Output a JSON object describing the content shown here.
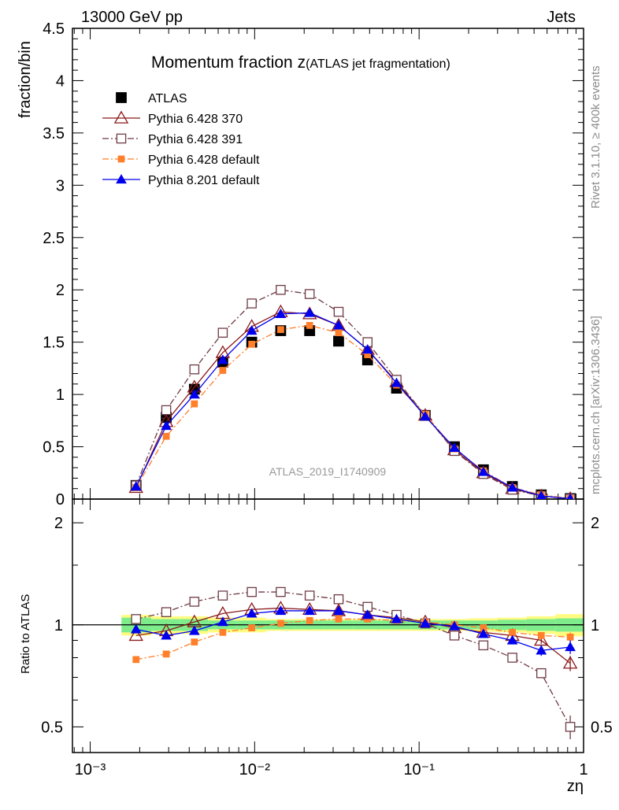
{
  "header": {
    "left_label": "13000 GeV pp",
    "right_label": "Jets",
    "side_top": "Rivet 3.1.10, ≥ 400k events",
    "side_bottom": "mcplots.cern.ch [arXiv:1306.3436]",
    "watermark": "ATLAS_2019_I1740909"
  },
  "chart_data": [
    {
      "type": "line",
      "title": "Momentum fraction z",
      "subtitle": "(ATLAS jet fragmentation)",
      "xlabel": "zη",
      "ylabel": "fraction/bin",
      "x_scale": "log",
      "xlim": [
        0.00078,
        1.0
      ],
      "ylim": [
        0,
        4.5
      ],
      "y_ticks": [
        0,
        0.5,
        1,
        1.5,
        2,
        2.5,
        3,
        3.5,
        4,
        4.5
      ],
      "y_tick_labels": [
        "0",
        "0.5",
        "1",
        "1.5",
        "2",
        "2.5",
        "3",
        "3.5",
        "4",
        "4.5"
      ],
      "x_tick_labels": [
        "10⁻³",
        "10⁻²",
        "10⁻¹",
        "1"
      ],
      "legend_position": "top-left",
      "x": [
        0.0019,
        0.0029,
        0.0043,
        0.0064,
        0.0096,
        0.0144,
        0.0216,
        0.0324,
        0.0486,
        0.0729,
        0.109,
        0.164,
        0.246,
        0.369,
        0.553,
        0.83
      ],
      "series": [
        {
          "name": "ATLAS",
          "marker": "square-filled",
          "color": "#000000",
          "values": [
            0.13,
            0.78,
            1.05,
            1.31,
            1.5,
            1.61,
            1.61,
            1.51,
            1.33,
            1.06,
            0.8,
            0.5,
            0.28,
            0.12,
            0.04,
            0.005
          ]
        },
        {
          "name": "Pythia 6.428 370",
          "marker": "triangle-open",
          "color": "#8b1a1a",
          "dash": "solid",
          "values": [
            0.11,
            0.74,
            1.07,
            1.4,
            1.65,
            1.79,
            1.77,
            1.66,
            1.43,
            1.12,
            0.8,
            0.47,
            0.25,
            0.1,
            0.03,
            0.004
          ]
        },
        {
          "name": "Pythia 6.428 391",
          "marker": "square-open",
          "color": "#6e3b44",
          "dash": "dashdot",
          "values": [
            0.13,
            0.85,
            1.24,
            1.59,
            1.87,
            2.0,
            1.96,
            1.79,
            1.5,
            1.14,
            0.8,
            0.46,
            0.24,
            0.09,
            0.03,
            0.003
          ]
        },
        {
          "name": "Pythia 6.428 default",
          "marker": "square-small-filled",
          "color": "#ff7f2a",
          "dash": "dashdot",
          "values": [
            0.11,
            0.6,
            0.91,
            1.23,
            1.48,
            1.62,
            1.66,
            1.59,
            1.38,
            1.09,
            0.81,
            0.48,
            0.27,
            0.11,
            0.04,
            0.005
          ]
        },
        {
          "name": "Pythia 8.201 default",
          "marker": "triangle-filled",
          "color": "#0000ee",
          "dash": "solid",
          "values": [
            0.12,
            0.7,
            1.0,
            1.33,
            1.61,
            1.77,
            1.78,
            1.66,
            1.43,
            1.11,
            0.79,
            0.49,
            0.26,
            0.11,
            0.03,
            0.004
          ]
        }
      ]
    },
    {
      "type": "line",
      "ylabel": "Ratio to ATLAS",
      "xlabel": "zη",
      "x_scale": "log",
      "y_scale": "log",
      "xlim": [
        0.00078,
        1.0
      ],
      "ylim": [
        0.42,
        2.35
      ],
      "y_tick_labels": [
        "0.5",
        "1",
        "2"
      ],
      "y_ticks": [
        0.5,
        1,
        2
      ],
      "reference_line": 1,
      "band_colors": {
        "inner": "#7fec8c",
        "outer": "#fffb80"
      },
      "band_x_edges": [
        0.00155,
        0.00235,
        0.0035,
        0.0052,
        0.0078,
        0.0117,
        0.0176,
        0.0264,
        0.0396,
        0.0594,
        0.0891,
        0.134,
        0.2,
        0.3,
        0.45,
        0.675,
        1.0
      ],
      "band_inner_halfwidth": [
        0.05,
        0.04,
        0.04,
        0.03,
        0.03,
        0.03,
        0.03,
        0.03,
        0.03,
        0.03,
        0.03,
        0.03,
        0.03,
        0.035,
        0.04,
        0.045
      ],
      "band_outer_halfwidth": [
        0.07,
        0.06,
        0.06,
        0.05,
        0.05,
        0.04,
        0.04,
        0.04,
        0.04,
        0.04,
        0.04,
        0.04,
        0.045,
        0.05,
        0.06,
        0.075
      ],
      "x": [
        0.0019,
        0.0029,
        0.0043,
        0.0064,
        0.0096,
        0.0144,
        0.0216,
        0.0324,
        0.0486,
        0.0729,
        0.109,
        0.164,
        0.246,
        0.369,
        0.553,
        0.83
      ],
      "series": [
        {
          "name": "Pythia 6.428 370",
          "marker": "triangle-open",
          "color": "#8b1a1a",
          "dash": "solid",
          "values": [
            0.93,
            0.96,
            1.02,
            1.08,
            1.11,
            1.12,
            1.11,
            1.1,
            1.07,
            1.05,
            1.02,
            0.98,
            0.95,
            0.93,
            0.9,
            0.77
          ],
          "errors": [
            0,
            0,
            0,
            0,
            0,
            0,
            0,
            0,
            0,
            0,
            0,
            0,
            0,
            0,
            0.02,
            0.04
          ]
        },
        {
          "name": "Pythia 6.428 391",
          "marker": "square-open",
          "color": "#6e3b44",
          "dash": "dashdot",
          "values": [
            1.04,
            1.09,
            1.17,
            1.22,
            1.25,
            1.25,
            1.22,
            1.19,
            1.13,
            1.07,
            1.01,
            0.93,
            0.87,
            0.8,
            0.72,
            0.5
          ],
          "errors": [
            0,
            0,
            0,
            0,
            0,
            0,
            0,
            0,
            0,
            0,
            0,
            0,
            0,
            0,
            0.02,
            0.04
          ]
        },
        {
          "name": "Pythia 6.428 default",
          "marker": "square-small-filled",
          "color": "#ff7f2a",
          "dash": "dashdot",
          "values": [
            0.79,
            0.82,
            0.89,
            0.95,
            0.98,
            1.01,
            1.03,
            1.04,
            1.04,
            1.03,
            1.02,
            1.0,
            0.98,
            0.95,
            0.93,
            0.92
          ],
          "errors": [
            0,
            0,
            0,
            0,
            0,
            0,
            0,
            0,
            0,
            0,
            0,
            0,
            0,
            0,
            0.02,
            0.03
          ]
        },
        {
          "name": "Pythia 8.201 default",
          "marker": "triangle-filled",
          "color": "#0000ee",
          "dash": "solid",
          "values": [
            0.97,
            0.93,
            0.96,
            1.02,
            1.08,
            1.1,
            1.1,
            1.1,
            1.07,
            1.04,
            1.01,
            0.99,
            0.94,
            0.9,
            0.84,
            0.86
          ],
          "errors": [
            0,
            0,
            0,
            0,
            0,
            0,
            0,
            0,
            0,
            0,
            0,
            0,
            0,
            0,
            0.03,
            0.04
          ]
        }
      ]
    }
  ]
}
